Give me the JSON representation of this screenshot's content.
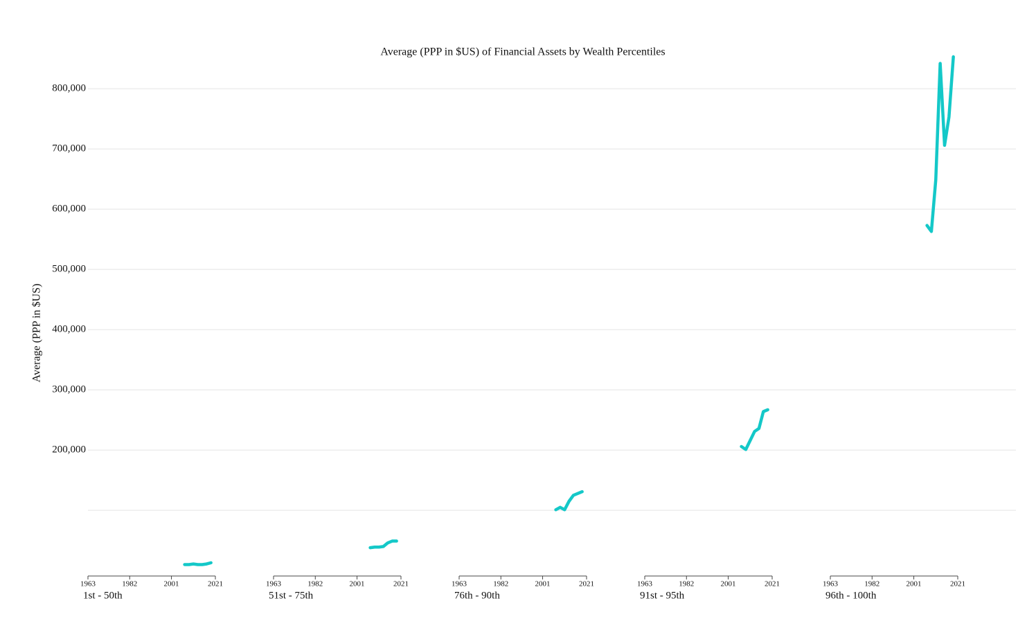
{
  "chart_data": {
    "type": "line",
    "title": "Average (PPP in $US) of Financial Assets by Wealth Percentiles",
    "y_label": "Average (PPP in $US)",
    "color": "#14c8c8",
    "grid": true,
    "ylim": [
      -9000,
      865000
    ],
    "yticks": [
      {
        "value": 100000,
        "label": null
      },
      {
        "value": 200000,
        "label": "200,000"
      },
      {
        "value": 300000,
        "label": "300,000"
      },
      {
        "value": 400000,
        "label": "400,000"
      },
      {
        "value": 500000,
        "label": "500,000"
      },
      {
        "value": 600000,
        "label": "600,000"
      },
      {
        "value": 700000,
        "label": "700,000"
      },
      {
        "value": 800000,
        "label": "800,000"
      }
    ],
    "panels": [
      {
        "name": "1st - 50th",
        "xlim": [
          1963,
          2021
        ],
        "xticks": [
          1963,
          1982,
          2001,
          2021
        ],
        "x": [
          2007,
          2009,
          2011,
          2013,
          2015,
          2017,
          2019
        ],
        "values": [
          10000,
          10000,
          11000,
          10000,
          10000,
          11000,
          13000
        ]
      },
      {
        "name": "51st - 75th",
        "xlim": [
          1963,
          2021
        ],
        "xticks": [
          1963,
          1982,
          2001,
          2021
        ],
        "x": [
          2007,
          2009,
          2011,
          2013,
          2015,
          2017,
          2019
        ],
        "values": [
          38000,
          39000,
          39000,
          40000,
          46000,
          49000,
          49000
        ]
      },
      {
        "name": "76th - 90th",
        "xlim": [
          1963,
          2021
        ],
        "xticks": [
          1963,
          1982,
          2001,
          2021
        ],
        "x": [
          2007,
          2009,
          2011,
          2013,
          2015,
          2017,
          2019
        ],
        "values": [
          101000,
          105000,
          101000,
          115000,
          125000,
          128000,
          131000
        ]
      },
      {
        "name": "91st - 95th",
        "xlim": [
          1963,
          2021
        ],
        "xticks": [
          1963,
          1982,
          2001,
          2021
        ],
        "x": [
          2007,
          2009,
          2011,
          2013,
          2015,
          2017,
          2019
        ],
        "values": [
          206000,
          201000,
          216000,
          231000,
          236000,
          264000,
          267000
        ]
      },
      {
        "name": "96th - 100th",
        "xlim": [
          1963,
          2021
        ],
        "xticks": [
          1963,
          1982,
          2001,
          2021
        ],
        "x": [
          2007,
          2009,
          2011,
          2013,
          2015,
          2017,
          2019
        ],
        "values": [
          573000,
          563000,
          649000,
          842000,
          706000,
          753000,
          853000
        ]
      }
    ]
  }
}
